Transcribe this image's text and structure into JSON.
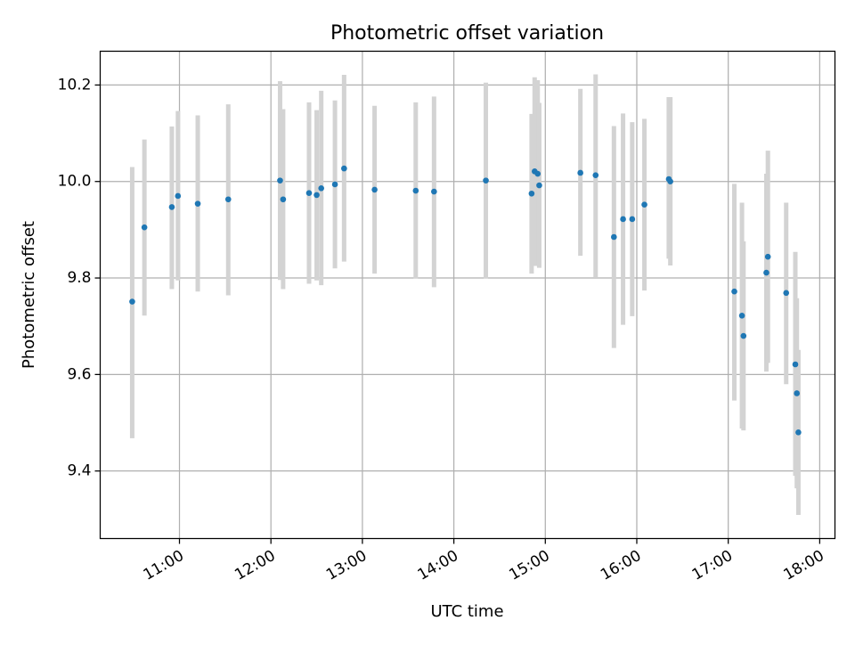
{
  "chart_data": {
    "type": "scatter",
    "title": "Photometric offset variation",
    "xlabel": "UTC time",
    "ylabel": "Photometric offset",
    "xlim": [
      "10:08",
      "18:10"
    ],
    "ylim": [
      9.26,
      10.27
    ],
    "x_ticks": [
      "11:00",
      "12:00",
      "13:00",
      "14:00",
      "15:00",
      "16:00",
      "17:00",
      "18:00"
    ],
    "y_ticks": [
      "9.4",
      "9.6",
      "9.8",
      "10.0",
      "10.2"
    ],
    "y_tick_values": [
      9.4,
      9.6,
      9.8,
      10.0,
      10.2
    ],
    "grid": true,
    "legend": "none",
    "colors": {
      "points": "#1f77b4",
      "errorbars": "#d3d3d3",
      "grid": "#b0b0b0",
      "axes": "#000000"
    },
    "series": [
      {
        "points": [
          {
            "x": "10:29",
            "y": 9.751,
            "ylow": 9.468,
            "yhigh": 10.03
          },
          {
            "x": "10:37",
            "y": 9.905,
            "ylow": 9.722,
            "yhigh": 10.087
          },
          {
            "x": "10:55",
            "y": 9.947,
            "ylow": 9.777,
            "yhigh": 10.114
          },
          {
            "x": "10:59",
            "y": 9.97,
            "ylow": 9.795,
            "yhigh": 10.146
          },
          {
            "x": "11:12",
            "y": 9.954,
            "ylow": 9.772,
            "yhigh": 10.137
          },
          {
            "x": "11:32",
            "y": 9.963,
            "ylow": 9.764,
            "yhigh": 10.16
          },
          {
            "x": "12:06",
            "y": 10.002,
            "ylow": 9.796,
            "yhigh": 10.208
          },
          {
            "x": "12:08",
            "y": 9.963,
            "ylow": 9.777,
            "yhigh": 10.15
          },
          {
            "x": "12:25",
            "y": 9.976,
            "ylow": 9.788,
            "yhigh": 10.164
          },
          {
            "x": "12:30",
            "y": 9.972,
            "ylow": 9.795,
            "yhigh": 10.148
          },
          {
            "x": "12:33",
            "y": 9.986,
            "ylow": 9.785,
            "yhigh": 10.188
          },
          {
            "x": "12:42",
            "y": 9.994,
            "ylow": 9.82,
            "yhigh": 10.168
          },
          {
            "x": "12:48",
            "y": 10.027,
            "ylow": 9.834,
            "yhigh": 10.221
          },
          {
            "x": "13:08",
            "y": 9.983,
            "ylow": 9.809,
            "yhigh": 10.157
          },
          {
            "x": "13:35",
            "y": 9.981,
            "ylow": 9.799,
            "yhigh": 10.164
          },
          {
            "x": "13:47",
            "y": 9.979,
            "ylow": 9.781,
            "yhigh": 10.176
          },
          {
            "x": "14:21",
            "y": 10.002,
            "ylow": 9.799,
            "yhigh": 10.205
          },
          {
            "x": "14:51",
            "y": 9.975,
            "ylow": 9.809,
            "yhigh": 10.14
          },
          {
            "x": "14:53",
            "y": 10.021,
            "ylow": 9.825,
            "yhigh": 10.216
          },
          {
            "x": "14:55",
            "y": 10.016,
            "ylow": 9.825,
            "yhigh": 10.21
          },
          {
            "x": "14:56",
            "y": 9.992,
            "ylow": 9.821,
            "yhigh": 10.163
          },
          {
            "x": "15:23",
            "y": 10.018,
            "ylow": 9.846,
            "yhigh": 10.192
          },
          {
            "x": "15:33",
            "y": 10.013,
            "ylow": 9.802,
            "yhigh": 10.222
          },
          {
            "x": "15:45",
            "y": 9.885,
            "ylow": 9.655,
            "yhigh": 10.115
          },
          {
            "x": "15:51",
            "y": 9.922,
            "ylow": 9.703,
            "yhigh": 10.141
          },
          {
            "x": "15:57",
            "y": 9.922,
            "ylow": 9.721,
            "yhigh": 10.123
          },
          {
            "x": "16:05",
            "y": 9.952,
            "ylow": 9.774,
            "yhigh": 10.13
          },
          {
            "x": "16:21",
            "y": 10.005,
            "ylow": 9.84,
            "yhigh": 10.175
          },
          {
            "x": "16:22",
            "y": 10.0,
            "ylow": 9.826,
            "yhigh": 10.175
          },
          {
            "x": "17:04",
            "y": 9.772,
            "ylow": 9.546,
            "yhigh": 9.995
          },
          {
            "x": "17:09",
            "y": 9.722,
            "ylow": 9.488,
            "yhigh": 9.956
          },
          {
            "x": "17:10",
            "y": 9.68,
            "ylow": 9.484,
            "yhigh": 9.876
          },
          {
            "x": "17:25",
            "y": 9.811,
            "ylow": 9.606,
            "yhigh": 10.016
          },
          {
            "x": "17:26",
            "y": 9.844,
            "ylow": 9.624,
            "yhigh": 10.064
          },
          {
            "x": "17:38",
            "y": 9.769,
            "ylow": 9.58,
            "yhigh": 9.956
          },
          {
            "x": "17:44",
            "y": 9.621,
            "ylow": 9.39,
            "yhigh": 9.854
          },
          {
            "x": "17:45",
            "y": 9.561,
            "ylow": 9.364,
            "yhigh": 9.758
          },
          {
            "x": "17:46",
            "y": 9.48,
            "ylow": 9.309,
            "yhigh": 9.651
          }
        ]
      }
    ]
  }
}
